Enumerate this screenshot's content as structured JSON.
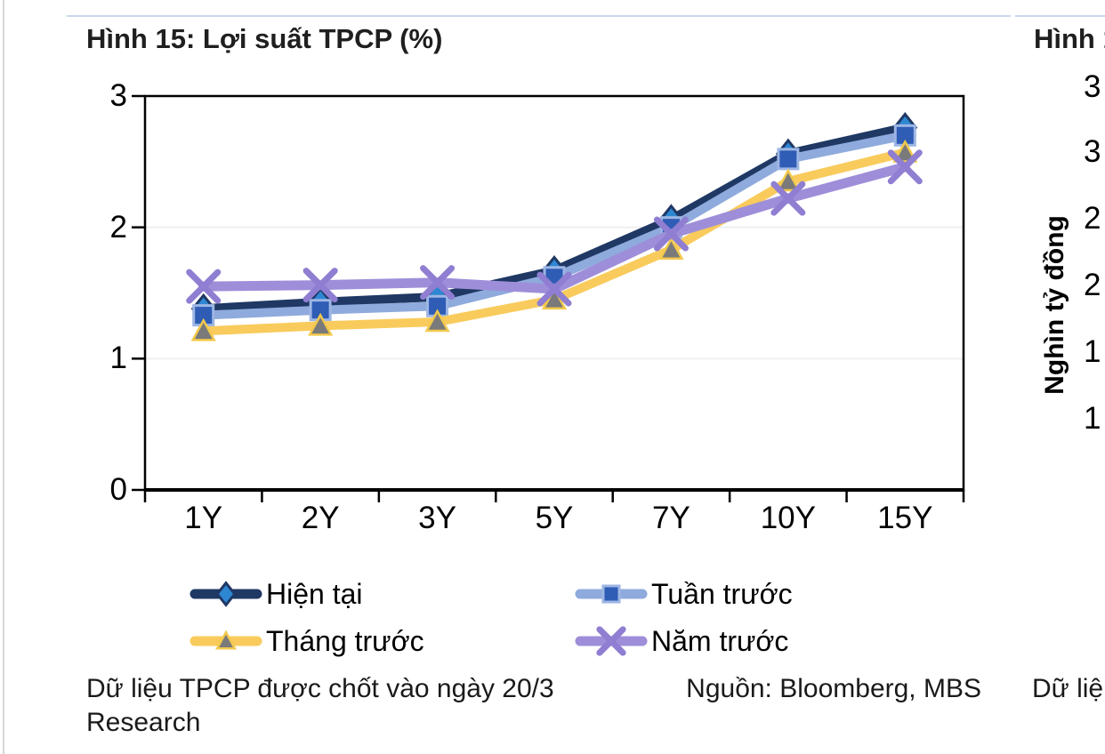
{
  "page": {
    "divider_color": "#567CB6"
  },
  "left_chart": {
    "title": "Hình 15: Lợi suất TPCP (%)",
    "footnote": {
      "line1_left": "Dữ liệu TPCP được chốt vào ngày 20/3",
      "line1_right": "Nguồn: Bloomberg, MBS",
      "line2": "Research"
    }
  },
  "chart_data": {
    "type": "line",
    "title": "Hình 15: Lợi suất TPCP (%)",
    "categories": [
      "1Y",
      "2Y",
      "3Y",
      "5Y",
      "7Y",
      "10Y",
      "15Y"
    ],
    "series": [
      {
        "name": "Hiện tại",
        "color": "#1F3864",
        "marker": "diamond",
        "marker_fill": "#2E87D3",
        "values": [
          1.38,
          1.43,
          1.47,
          1.67,
          2.06,
          2.56,
          2.76
        ]
      },
      {
        "name": "Tuần trước",
        "color": "#8FAADC",
        "marker": "square",
        "marker_fill": "#2F5CB5",
        "values": [
          1.33,
          1.37,
          1.4,
          1.62,
          2.0,
          2.52,
          2.7
        ]
      },
      {
        "name": "Tháng trước",
        "color": "#F9CB5C",
        "marker": "triangle",
        "marker_fill": "#7A7A7A",
        "values": [
          1.21,
          1.25,
          1.28,
          1.45,
          1.83,
          2.35,
          2.57
        ]
      },
      {
        "name": "Năm trước",
        "color": "#9E8ED9",
        "marker": "x",
        "marker_fill": "#8F7ED1",
        "values": [
          1.55,
          1.56,
          1.58,
          1.53,
          1.95,
          2.22,
          2.46
        ]
      }
    ],
    "ylim": [
      0,
      3
    ],
    "yticks": [
      0,
      1,
      2,
      3
    ],
    "grid": "horizontal-faint",
    "legend_position": "bottom",
    "axis_color": "#000000",
    "gridline_color": "#edeff1"
  },
  "right_chart": {
    "title_partial": "Hình 1",
    "ylabel": "Nghìn tỷ đồng",
    "ytick_partials": [
      "3",
      "3",
      "2",
      "2",
      "1",
      "1"
    ],
    "footnote_partial": "Dữ liệ"
  }
}
